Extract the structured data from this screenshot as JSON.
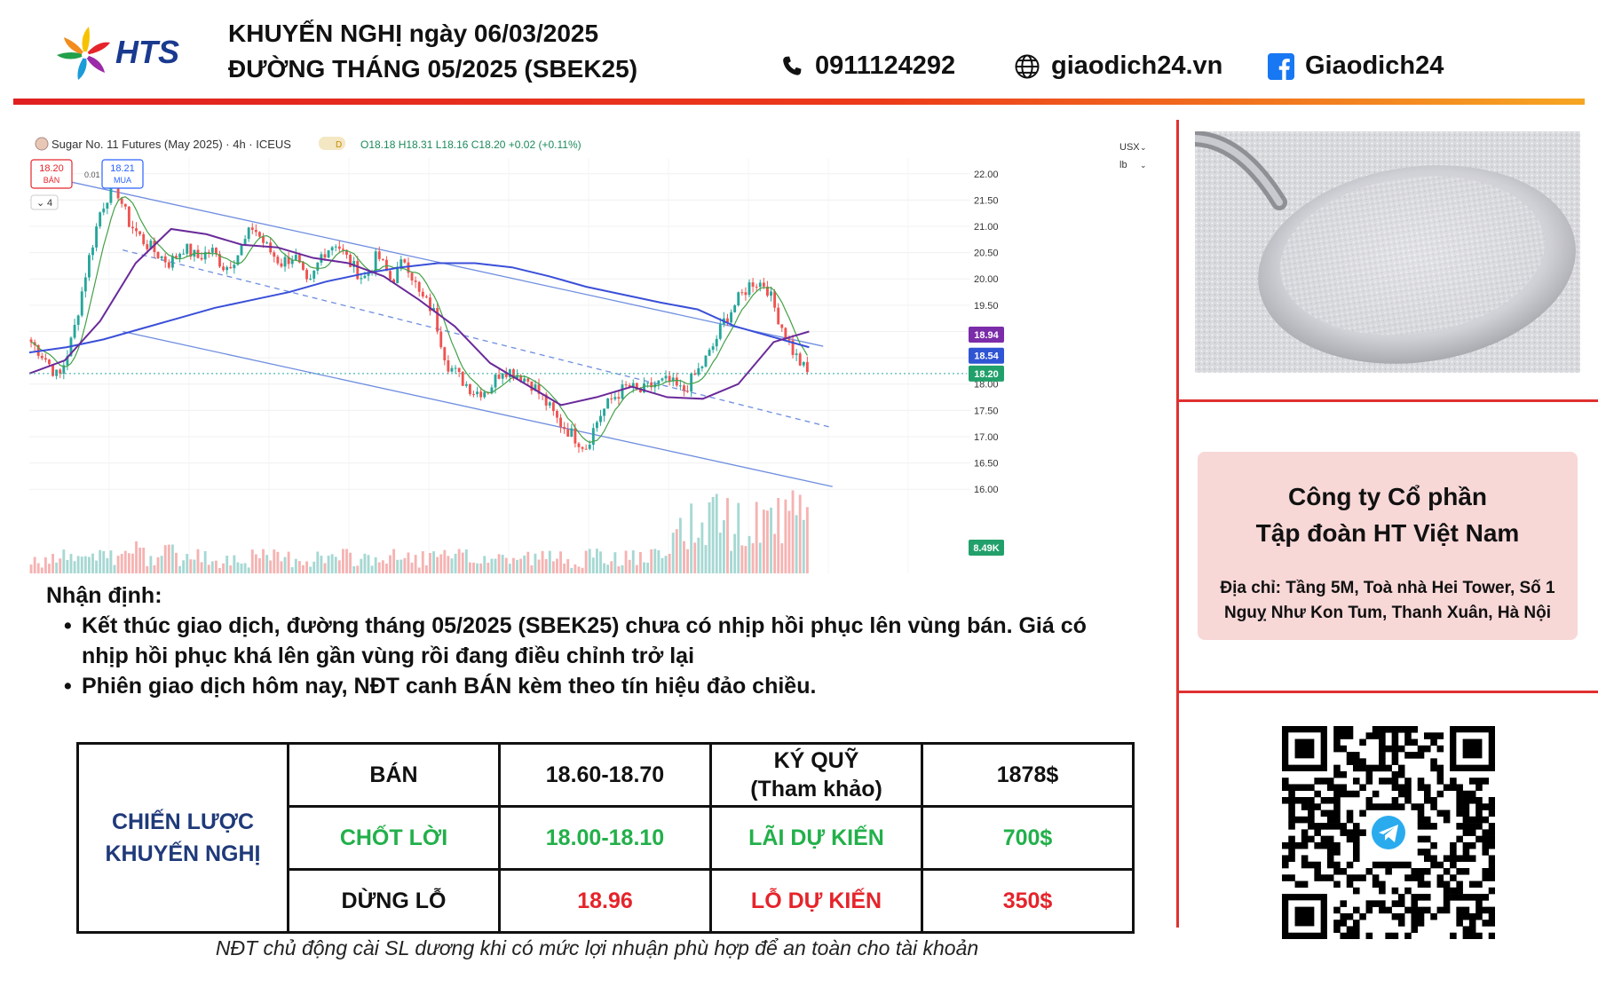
{
  "header": {
    "logo_text": "HTS",
    "title_line1": "KHUYẾN NGHỊ ngày 06/03/2025",
    "title_line2": "ĐƯỜNG THÁNG 05/2025 (SBEK25)",
    "phone": "0911124292",
    "website": "giaodich24.vn",
    "facebook": "Giaodich24"
  },
  "chart_header": {
    "symbol": "Sugar No. 11 Futures (May 2025) · 4h · ICEUS",
    "ohlc": "O18.18 H18.31 L18.16 C18.20 +0.02 (+0.11%)",
    "sell_price": "18.20",
    "sell_label": "BÁN",
    "spread": "0.01",
    "buy_price": "18.21",
    "buy_label": "MUA",
    "indicator_count": "4",
    "currency": "USX",
    "unit": "lb"
  },
  "chart_data": {
    "type": "candlestick",
    "title": "Sugar No. 11 Futures (May 2025) · 4h · ICEUS",
    "y_ticks": [
      "22.00",
      "21.50",
      "21.00",
      "20.50",
      "20.00",
      "19.50",
      "19.00",
      "18.50",
      "18.00",
      "17.50",
      "17.00",
      "16.50",
      "16.00"
    ],
    "ylim": [
      15.75,
      22.3
    ],
    "price_path": [
      18.8,
      18.5,
      18.1,
      18.9,
      20.2,
      21.3,
      21.85,
      21.1,
      20.75,
      20.5,
      20.3,
      20.6,
      20.4,
      20.55,
      20.2,
      20.5,
      21.0,
      20.6,
      20.3,
      20.45,
      19.8,
      20.5,
      20.7,
      20.3,
      20.0,
      20.45,
      19.95,
      20.4,
      19.7,
      19.4,
      18.4,
      18.1,
      17.85,
      17.9,
      18.3,
      18.2,
      18.05,
      17.7,
      17.3,
      17.05,
      16.8,
      17.4,
      17.75,
      17.95,
      17.85,
      18.0,
      18.05,
      17.85,
      18.2,
      18.6,
      19.2,
      19.6,
      19.95,
      19.9,
      19.2,
      18.6,
      18.2
    ],
    "series": [
      {
        "name": "",
        "color": "#3a4fd8",
        "values": [
          18.6,
          18.7,
          18.85,
          19.05,
          19.25,
          19.45,
          19.6,
          19.75,
          19.95,
          20.1,
          20.22,
          20.3,
          20.3,
          20.22,
          20.05,
          19.85,
          19.7,
          19.55,
          19.42,
          19.1,
          18.9,
          18.7
        ]
      },
      {
        "name": "",
        "color": "#6a2a9a",
        "values": [
          18.2,
          18.45,
          19.2,
          20.3,
          20.95,
          20.85,
          20.65,
          20.6,
          20.4,
          20.3,
          20.05,
          19.6,
          19.1,
          18.4,
          18.0,
          17.6,
          17.75,
          17.95,
          17.75,
          17.72,
          18.0,
          18.8,
          19.0
        ]
      }
    ],
    "channel_upper": [
      [
        0.03,
        21.9
      ],
      [
        0.85,
        18.72
      ]
    ],
    "channel_mid": [
      [
        0.1,
        20.55
      ],
      [
        0.86,
        17.17
      ]
    ],
    "channel_lower": [
      [
        0.1,
        19.0
      ],
      [
        0.86,
        16.05
      ]
    ],
    "price_labels": [
      {
        "value": "18.94",
        "color": "#7b2ca8"
      },
      {
        "value": "18.54",
        "color": "#2f55d4"
      },
      {
        "value": "18.20",
        "color": "#22a06b"
      }
    ],
    "volume_label": "8.49K"
  },
  "analysis": {
    "heading": "Nhận định:",
    "bullet1_line1": "Kết thúc giao dịch, đường tháng 05/2025 (SBEK25) chưa có nhịp hồi phục lên vùng bán. Giá có",
    "bullet1_line2": "nhịp hồi phục khá lên gần vùng rồi đang điều chỉnh trở lại",
    "bullet2": "Phiên giao dịch hôm nay, NĐT canh BÁN kèm theo tín hiệu đảo chiều."
  },
  "strategy": {
    "heading_line1": "CHIẾN LƯỢC",
    "heading_line2": "KHUYẾN NGHỊ",
    "row1": {
      "action": "BÁN",
      "range": "18.60-18.70",
      "label_line1": "KÝ QUỸ",
      "label_line2": "(Tham khảo)",
      "value": "1878$"
    },
    "row2": {
      "action": "CHỐT LỜI",
      "range": "18.00-18.10",
      "label": "LÃI DỰ KIẾN",
      "value": "700$"
    },
    "row3": {
      "action": "DỪNG LỖ",
      "range": "18.96",
      "label": "LỖ DỰ KIẾN",
      "value": "350$"
    }
  },
  "note": "NĐT chủ động cài SL dương khi có mức lợi nhuận phù hợp để an toàn cho tài khoản",
  "company": {
    "name_line1": "Công ty Cổ phần",
    "name_line2": "Tập đoàn HT Việt Nam",
    "address_line1": "Địa chỉ: Tầng 5M, Toà nhà Hei Tower, Số 1",
    "address_line2": "Nguỵ Như Kon Tum, Thanh Xuân, Hà Nội"
  },
  "icons": {
    "phone": "phone-icon",
    "globe": "globe-icon",
    "facebook": "facebook-icon",
    "telegram": "telegram-icon"
  }
}
